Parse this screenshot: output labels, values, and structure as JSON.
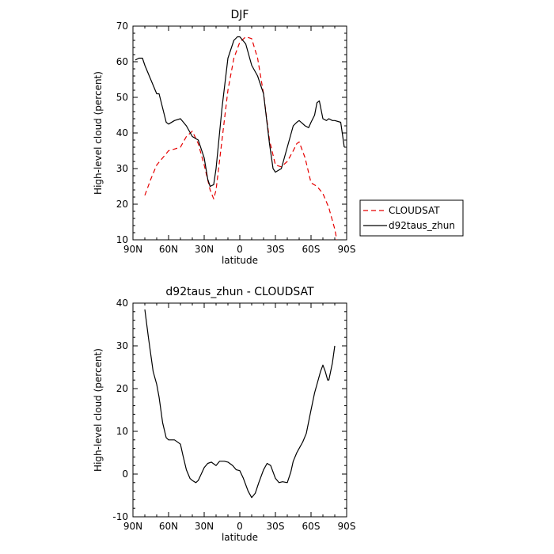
{
  "chart_data": [
    {
      "type": "line",
      "title": "DJF",
      "xlabel": "latitude",
      "ylabel": "High-level cloud (percent)",
      "xlim": [
        90,
        -90
      ],
      "ylim": [
        10,
        70
      ],
      "xticks": [
        {
          "value": 90,
          "label": "90N"
        },
        {
          "value": 60,
          "label": "60N"
        },
        {
          "value": 30,
          "label": "30N"
        },
        {
          "value": 0,
          "label": "0"
        },
        {
          "value": -30,
          "label": "30S"
        },
        {
          "value": -60,
          "label": "60S"
        },
        {
          "value": -90,
          "label": "90S"
        }
      ],
      "yticks": [
        10,
        20,
        30,
        40,
        50,
        60,
        70
      ],
      "legend": {
        "placement": "right-outside"
      },
      "series": [
        {
          "name": "CLOUDSAT",
          "color": "#e60000",
          "dash": "dashed",
          "x": [
            80,
            75,
            70,
            65,
            60,
            55,
            50,
            45,
            40,
            35,
            30,
            25,
            22,
            20,
            15,
            10,
            5,
            0,
            -5,
            -10,
            -15,
            -20,
            -25,
            -30,
            -35,
            -40,
            -45,
            -48,
            -50,
            -55,
            -60,
            -65,
            -70,
            -75,
            -80,
            -82
          ],
          "y": [
            22.5,
            27,
            31,
            33,
            35,
            35.5,
            36,
            39,
            40.5,
            37,
            31,
            24,
            21.5,
            24,
            38,
            52,
            61,
            65.5,
            67,
            66.5,
            61,
            51,
            38,
            31,
            30.5,
            32,
            35,
            37,
            37.5,
            33,
            26,
            25,
            23,
            19,
            13,
            9.5
          ]
        },
        {
          "name": "d92taus_zhun",
          "color": "#000000",
          "dash": "solid",
          "x": [
            88,
            85,
            82,
            80,
            75,
            70,
            68,
            65,
            62,
            60,
            55,
            50,
            45,
            40,
            35,
            30,
            27,
            25,
            22,
            20,
            15,
            10,
            5,
            2,
            0,
            -5,
            -10,
            -15,
            -20,
            -25,
            -28,
            -30,
            -35,
            -40,
            -45,
            -48,
            -50,
            -55,
            -58,
            -60,
            -63,
            -65,
            -67,
            -70,
            -73,
            -75,
            -78,
            -80,
            -85,
            -88
          ],
          "y": [
            60.5,
            61,
            61,
            59,
            55,
            51,
            51,
            47,
            43,
            42.5,
            43.5,
            44,
            42,
            39,
            38,
            33,
            27,
            25,
            25.5,
            30,
            47,
            61,
            66,
            67,
            67,
            65,
            59,
            56,
            51,
            37,
            30,
            29,
            30,
            36,
            42,
            43,
            43.5,
            42,
            41.5,
            43,
            45,
            48.5,
            49,
            44,
            43.5,
            44,
            43.5,
            43.5,
            43,
            36
          ]
        }
      ]
    },
    {
      "type": "line",
      "title": "d92taus_zhun - CLOUDSAT",
      "xlabel": "latitude",
      "ylabel": "High-level cloud (percent)",
      "xlim": [
        90,
        -90
      ],
      "ylim": [
        -10,
        40
      ],
      "xticks": [
        {
          "value": 90,
          "label": "90N"
        },
        {
          "value": 60,
          "label": "60N"
        },
        {
          "value": 30,
          "label": "30N"
        },
        {
          "value": 0,
          "label": "0"
        },
        {
          "value": -30,
          "label": "30S"
        },
        {
          "value": -60,
          "label": "60S"
        },
        {
          "value": -90,
          "label": "90S"
        }
      ],
      "yticks": [
        -10,
        0,
        10,
        20,
        30,
        40
      ],
      "series": [
        {
          "color": "#000000",
          "dash": "solid",
          "x": [
            80,
            77,
            75,
            73,
            70,
            68,
            65,
            62,
            60,
            55,
            50,
            48,
            45,
            42,
            40,
            37,
            35,
            30,
            27,
            24,
            20,
            17,
            13,
            10,
            6,
            3,
            0,
            -3,
            -7,
            -10,
            -13,
            -16,
            -20,
            -23,
            -26,
            -30,
            -33,
            -36,
            -40,
            -43,
            -45,
            -48,
            -50,
            -53,
            -56,
            -60,
            -63,
            -65,
            -68,
            -70,
            -72,
            -74,
            -75,
            -78,
            -80
          ],
          "y": [
            38.5,
            32,
            28,
            24,
            21,
            18,
            12,
            8.5,
            8,
            8,
            7,
            4.5,
            1,
            -1,
            -1.5,
            -2,
            -1.5,
            1.5,
            2.5,
            2.8,
            2,
            3,
            3,
            2.8,
            2,
            1,
            0.8,
            -1,
            -4,
            -5.5,
            -4.5,
            -2,
            1,
            2.5,
            2,
            -1,
            -2,
            -1.8,
            -2,
            0.5,
            3,
            5,
            6,
            7.5,
            9.5,
            15,
            19,
            21,
            24,
            25.5,
            24,
            22,
            22,
            26,
            30
          ]
        }
      ]
    }
  ]
}
